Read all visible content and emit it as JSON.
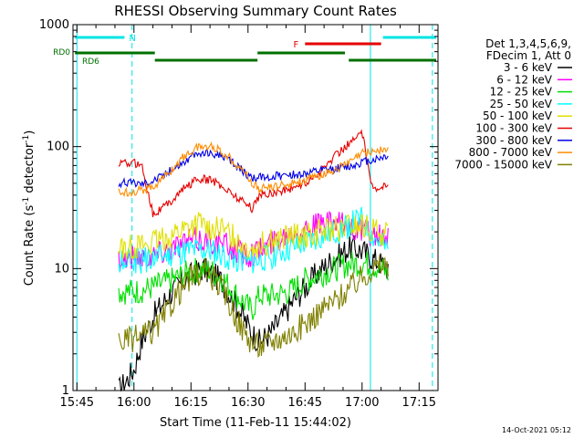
{
  "chart_data": {
    "type": "line",
    "title": "RHESSI Observing Summary Count Rates",
    "xlabel": "Start Time (11-Feb-11 15:44:02)",
    "ylabel_main": "Count Rate (s",
    "ylabel_sup1": "-1",
    "ylabel_mid": " detector",
    "ylabel_sup2": "-1",
    "ylabel_end": ")",
    "yscale": "log",
    "ylim": [
      1,
      1000
    ],
    "xlim_minutes": [
      -1.03,
      94.97
    ],
    "x_tick_labels": [
      {
        "label": "15:45",
        "value": 0
      },
      {
        "label": "16:00",
        "value": 15
      },
      {
        "label": "16:15",
        "value": 30
      },
      {
        "label": "16:30",
        "value": 45
      },
      {
        "label": "16:45",
        "value": 60
      },
      {
        "label": "17:00",
        "value": 75
      },
      {
        "label": "17:15",
        "value": 90
      }
    ],
    "y_tick_labels": [
      {
        "label": "1",
        "value": 1
      },
      {
        "label": "10",
        "value": 10
      },
      {
        "label": "100",
        "value": 100
      },
      {
        "label": "1000",
        "value": 1000
      }
    ],
    "legend": {
      "header": [
        "Det 1,3,4,5,6,9,",
        "FDecim 1, Att 0"
      ],
      "position": "right"
    },
    "flags": {
      "N_label": "N",
      "F_label": "F",
      "RD0_label": "RD0",
      "RD6_label": "RD6",
      "N_color": "#00e5e5",
      "F_color": "#e60000",
      "RD_color": "#007000",
      "N_segments": [
        [
          -0.5,
          12.5
        ],
        [
          80.5,
          94.5
        ]
      ],
      "F_segment": [
        60,
        80
      ],
      "RD0_segments": [
        [
          -0.5,
          20.5
        ],
        [
          47.5,
          70.5
        ]
      ],
      "RD6_segments": [
        [
          20.5,
          47.5
        ],
        [
          71.5,
          94.5
        ]
      ],
      "cyan_lines_solid": [
        0,
        77.2
      ],
      "cyan_lines_dashed": [
        14.5,
        93.5
      ]
    },
    "timestamp": "14-Oct-2021 05:12",
    "series": [
      {
        "name": "3 - 6 keV",
        "color": "#000000",
        "x": [
          11,
          13,
          15,
          17,
          20,
          24,
          28,
          33,
          38,
          42,
          46,
          48,
          51,
          54,
          57,
          60,
          63,
          66,
          69,
          72,
          75,
          78,
          80,
          82
        ],
        "y": [
          1,
          1.2,
          1.5,
          2.5,
          4,
          6,
          8,
          10,
          8,
          5,
          3,
          2.5,
          3,
          4,
          5.5,
          7,
          9,
          11,
          13,
          15,
          14,
          12,
          11,
          10
        ]
      },
      {
        "name": "6 - 12 keV",
        "color": "#ff00ff",
        "x": [
          11,
          15,
          20,
          25,
          30,
          35,
          40,
          45,
          48,
          52,
          56,
          60,
          64,
          68,
          72,
          76,
          80,
          82
        ],
        "y": [
          12,
          12.5,
          13,
          15,
          17,
          17,
          15,
          13,
          14,
          17,
          20,
          22,
          23,
          23,
          22,
          20,
          18,
          17
        ]
      },
      {
        "name": "12 - 25 keV",
        "color": "#00e000",
        "x": [
          11,
          16,
          20,
          25,
          30,
          34,
          38,
          42,
          46,
          48,
          52,
          56,
          60,
          64,
          68,
          72,
          76,
          80,
          82
        ],
        "y": [
          6.5,
          6.5,
          7,
          8,
          9.5,
          10,
          8.5,
          6,
          4.5,
          6,
          6,
          6.5,
          8,
          9,
          10,
          11,
          11,
          10,
          9
        ]
      },
      {
        "name": "25 - 50 keV",
        "color": "#00ffff",
        "x": [
          11,
          16,
          20,
          25,
          30,
          34,
          38,
          42,
          46,
          48,
          52,
          56,
          60,
          64,
          68,
          72,
          75,
          78,
          82
        ],
        "y": [
          11,
          11.5,
          12,
          13,
          14,
          14,
          13,
          12,
          11,
          12,
          13,
          14.5,
          16,
          18,
          20,
          23,
          25,
          18,
          14
        ]
      },
      {
        "name": "50 - 100 keV",
        "color": "#e0e000",
        "x": [
          11,
          16,
          20,
          24,
          28,
          32,
          36,
          40,
          44,
          46,
          48,
          52,
          56,
          60,
          64,
          68,
          72,
          75,
          78,
          82
        ],
        "y": [
          15,
          15.5,
          16,
          18,
          21,
          23,
          22,
          19,
          16,
          15,
          15.5,
          17,
          18,
          19,
          20,
          21,
          22,
          22,
          20,
          19
        ]
      },
      {
        "name": "100 - 300 keV",
        "color": "#e60000",
        "x": [
          11,
          15,
          17,
          20,
          24,
          28,
          32,
          36,
          40,
          44,
          46,
          48,
          52,
          56,
          60,
          64,
          68,
          72,
          75,
          78,
          82
        ],
        "y": [
          72,
          73,
          72,
          28,
          34,
          45,
          55,
          52,
          43,
          35,
          31,
          40,
          42,
          45,
          50,
          62,
          85,
          110,
          128,
          42,
          52
        ]
      },
      {
        "name": "300 - 800 keV",
        "color": "#0000e6",
        "x": [
          11,
          15,
          17,
          20,
          24,
          28,
          32,
          36,
          40,
          44,
          46,
          48,
          52,
          56,
          60,
          64,
          68,
          72,
          75,
          78,
          82
        ],
        "y": [
          50,
          51,
          50,
          53,
          62,
          75,
          88,
          88,
          78,
          62,
          54,
          56,
          57,
          59,
          60,
          63,
          66,
          69,
          75,
          78,
          85
        ]
      },
      {
        "name": "800 - 7000 keV",
        "color": "#ff8c00",
        "x": [
          11,
          15,
          17,
          20,
          24,
          28,
          32,
          36,
          40,
          44,
          46,
          48,
          52,
          56,
          60,
          64,
          68,
          72,
          75,
          78,
          82
        ],
        "y": [
          42,
          43,
          44,
          47,
          60,
          82,
          100,
          100,
          82,
          63,
          50,
          45,
          47,
          50,
          53,
          58,
          65,
          75,
          88,
          92,
          95
        ]
      },
      {
        "name": "7000 - 15000 keV",
        "color": "#808000",
        "x": [
          11,
          14,
          17,
          20,
          23,
          26,
          30,
          34,
          38,
          41,
          44,
          46,
          48,
          52,
          56,
          60,
          64,
          68,
          72,
          75,
          78,
          82
        ],
        "y": [
          2.5,
          2.6,
          2.8,
          3,
          4,
          6,
          8.5,
          9.5,
          7,
          4.5,
          3,
          2.5,
          2.3,
          2.6,
          2.9,
          3.5,
          4.5,
          5.5,
          7,
          8.5,
          10,
          11
        ]
      }
    ]
  }
}
